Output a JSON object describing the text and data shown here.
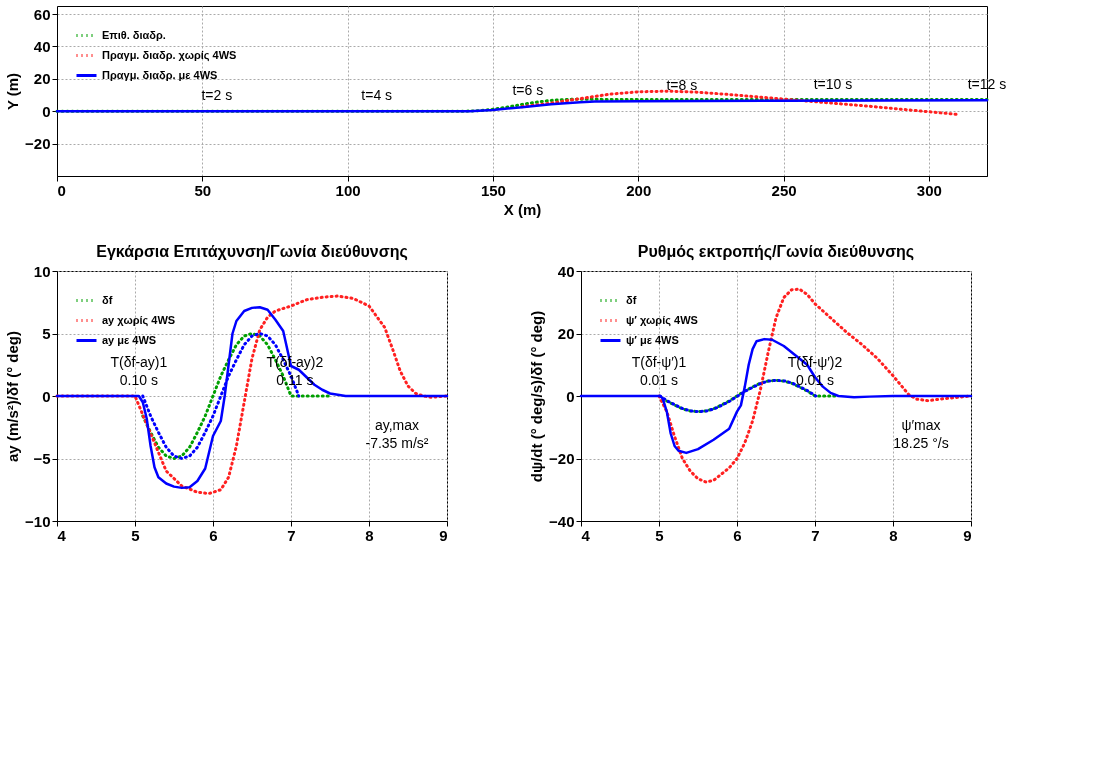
{
  "chart_data": [
    {
      "type": "line",
      "xlabel": "X (m)",
      "ylabel": "Y (m)",
      "xlim": [
        0,
        320
      ],
      "ylim": [
        -40,
        65
      ],
      "xticks": [
        0,
        50,
        100,
        150,
        200,
        250,
        300
      ],
      "yticks": [
        -20,
        0,
        20,
        40,
        60
      ],
      "grid": true,
      "legend": "top left",
      "marker": "none",
      "series": [
        {
          "name": "Επιθ. διαδρ.",
          "color": "#00a000",
          "line_style": "dotted",
          "x": [
            0,
            140,
            145,
            150,
            155,
            160,
            165,
            170,
            175,
            180,
            190,
            200,
            250,
            320
          ],
          "values": [
            0,
            0,
            0.3,
            1.2,
            2.6,
            4.2,
            5.6,
            6.7,
            7.3,
            7.4,
            7.3,
            7.2,
            7.2,
            7.2
          ]
        },
        {
          "name": "Πραγμ. διαδρ. χωρίς 4WS",
          "color": "#ff2020",
          "line_style": "dotted",
          "x": [
            160,
            170,
            180,
            190,
            200,
            210,
            220,
            230,
            240,
            250,
            260,
            270,
            280,
            290,
            300,
            310
          ],
          "values": [
            2.8,
            5.0,
            7.8,
            10.5,
            12.0,
            12.4,
            11.8,
            10.5,
            9.0,
            7.5,
            6.0,
            4.5,
            3.0,
            1.3,
            -0.3,
            -2.0
          ]
        },
        {
          "name": "Πραγμ. διαδρ. με 4WS",
          "color": "#0000ff",
          "line_style": "solid",
          "x": [
            0,
            142,
            150,
            160,
            170,
            180,
            185,
            200,
            250,
            320
          ],
          "values": [
            0,
            0,
            0.8,
            2.5,
            4.3,
            5.6,
            6.0,
            6.2,
            6.5,
            6.8
          ]
        }
      ],
      "annotations": [
        {
          "text": "t=2 s",
          "x": 55,
          "y": 0
        },
        {
          "text": "t=4 s",
          "x": 110,
          "y": 0
        },
        {
          "text": "t=6 s",
          "x": 162,
          "y": 3
        },
        {
          "text": "t=8 s",
          "x": 215,
          "y": 6.5
        },
        {
          "text": "t=10 s",
          "x": 267,
          "y": 6.8
        },
        {
          "text": "t=12 s",
          "x": 320,
          "y": 7
        }
      ]
    },
    {
      "type": "line",
      "title": "Εγκάρσια Επιτάχυνση/Γωνία διεύθυνσης",
      "ylabel": "ay (m/s²)/δf (° deg)",
      "xlim": [
        4,
        9
      ],
      "ylim": [
        -10,
        10
      ],
      "xticks": [
        4,
        5,
        6,
        7,
        8,
        9
      ],
      "yticks": [
        -10,
        -5,
        0,
        5,
        10
      ],
      "grid": true,
      "legend": "top left",
      "marker": "none",
      "series": [
        {
          "name": "δf",
          "color": "#00a000",
          "line_style": "dotted",
          "x": [
            5.1,
            5.2,
            5.3,
            5.4,
            5.5,
            5.6,
            5.7,
            5.8,
            5.9,
            6,
            6.1,
            6.2,
            6.3,
            6.4,
            6.5,
            6.6,
            6.7,
            6.8,
            6.9,
            7,
            7.5
          ],
          "values": [
            -1.6,
            -2.9,
            -4.1,
            -4.8,
            -5,
            -4.8,
            -4.1,
            -2.9,
            -1.6,
            0,
            1.6,
            2.9,
            4.1,
            4.8,
            5,
            4.8,
            4.1,
            2.9,
            1.6,
            0,
            0
          ]
        },
        {
          "name": "ay χωρίς 4WS",
          "color": "#ff2020",
          "line_style": "dotted",
          "x": [
            4,
            5,
            5.2,
            5.4,
            5.6,
            5.8,
            5.95,
            6.1,
            6.2,
            6.3,
            6.4,
            6.5,
            6.6,
            6.7,
            6.8,
            7,
            7.2,
            7.4,
            7.6,
            7.8,
            8,
            8.2,
            8.3,
            8.4,
            8.5,
            8.6,
            8.7,
            8.8,
            9
          ],
          "values": [
            0,
            0,
            -3,
            -6,
            -7.2,
            -7.7,
            -7.8,
            -7.5,
            -6.5,
            -4,
            -0.5,
            3,
            5.3,
            6.3,
            6.8,
            7.2,
            7.7,
            7.9,
            8,
            7.8,
            7.2,
            5.5,
            3.8,
            2,
            0.8,
            0.2,
            0,
            -0.1,
            0
          ]
        },
        {
          "name": "ay με 4WS",
          "color": "#0000ff",
          "line_style": "solid",
          "x": [
            4,
            5.05,
            5.1,
            5.15,
            5.2,
            5.25,
            5.3,
            5.4,
            5.5,
            5.6,
            5.7,
            5.8,
            5.9,
            6,
            6.1,
            6.15,
            6.2,
            6.25,
            6.3,
            6.4,
            6.5,
            6.6,
            6.7,
            6.8,
            6.9,
            7,
            7.1,
            7.2,
            7.3,
            7.4,
            7.5,
            7.7,
            9
          ],
          "values": [
            0,
            0,
            -0.5,
            -1.8,
            -4,
            -5.7,
            -6.5,
            -7,
            -7.25,
            -7.35,
            -7.3,
            -6.8,
            -5.8,
            -3.2,
            -2,
            0,
            2.5,
            5,
            6,
            6.8,
            7.05,
            7.1,
            6.9,
            6.1,
            5.2,
            2.4,
            2.1,
            1.5,
            0.9,
            0.5,
            0.2,
            0,
            0
          ]
        },
        {
          "color": "#0000ff",
          "line_style": "dotted",
          "x": [
            5.1,
            5.2,
            5.3,
            5.4,
            5.5,
            5.6,
            5.7,
            5.8,
            5.9,
            6,
            6.1,
            6.2,
            6.3,
            6.4,
            6.5,
            6.6,
            6.7,
            6.8,
            6.9,
            7,
            7.1
          ],
          "values": [
            0,
            -1.6,
            -2.9,
            -4.1,
            -4.8,
            -5,
            -4.8,
            -4.1,
            -2.9,
            -1.6,
            0,
            1.6,
            2.9,
            4.1,
            4.8,
            5,
            4.8,
            4.1,
            2.9,
            1.6,
            0
          ]
        }
      ],
      "annotations": [
        {
          "text": "T(δf-ay)1",
          "x": 5.05,
          "y": 0
        },
        {
          "text": "0.10 s",
          "x": 5.05,
          "y": 0
        },
        {
          "text": "T(δf-ay)2",
          "x": 7.05,
          "y": 0
        },
        {
          "text": "0.11 s",
          "x": 7.05,
          "y": 0
        },
        "ay,max",
        "-7.35 m/s²"
      ]
    },
    {
      "type": "line",
      "title": "Ρυθμός εκτροπής/Γωνία διεύθυνσης",
      "ylabel": "dψ/dt (° deg/s)/δf (° deg)",
      "xlim": [
        4,
        9
      ],
      "ylim": [
        -40,
        40
      ],
      "xticks": [
        4,
        5,
        6,
        7,
        8,
        9
      ],
      "yticks": [
        -40,
        -20,
        0,
        20,
        40
      ],
      "grid": true,
      "legend": "top left",
      "marker": "none",
      "series": [
        {
          "name": "δf",
          "color": "#00a000",
          "line_style": "dotted",
          "x": [
            5.1,
            5.2,
            5.3,
            5.4,
            5.5,
            5.6,
            5.7,
            5.8,
            5.9,
            6,
            6.1,
            6.2,
            6.3,
            6.4,
            6.5,
            6.6,
            6.7,
            6.8,
            6.9,
            7,
            7.3
          ],
          "values": [
            -1.6,
            -2.9,
            -4.1,
            -4.8,
            -5,
            -4.8,
            -4.1,
            -2.9,
            -1.6,
            0,
            1.6,
            2.9,
            4.1,
            4.8,
            5,
            4.8,
            4.1,
            2.9,
            1.6,
            0,
            0
          ]
        },
        {
          "name": "ψ′ χωρίς 4WS",
          "color": "#ff2020",
          "line_style": "dotted",
          "x": [
            5,
            5.1,
            5.2,
            5.3,
            5.4,
            5.5,
            5.6,
            5.7,
            5.8,
            5.9,
            6,
            6.1,
            6.2,
            6.3,
            6.4,
            6.5,
            6.6,
            6.7,
            6.8,
            6.9,
            7,
            7.2,
            7.4,
            7.6,
            7.8,
            8,
            8.1,
            8.2,
            8.3,
            8.45,
            8.6,
            8.8,
            9
          ],
          "values": [
            0,
            -5,
            -13,
            -20,
            -24,
            -26.5,
            -27.5,
            -27,
            -25,
            -23,
            -20,
            -15,
            -8,
            2,
            14,
            25,
            31.5,
            34,
            34.2,
            32.5,
            29.5,
            25,
            20.5,
            16.5,
            12,
            6.5,
            3.5,
            0.5,
            -1,
            -1.5,
            -1,
            -0.5,
            0
          ]
        },
        {
          "name": "ψ′ με 4WS",
          "color": "#0000ff",
          "line_style": "solid",
          "x": [
            4,
            5.02,
            5.05,
            5.1,
            5.15,
            5.2,
            5.25,
            5.35,
            5.5,
            5.7,
            5.9,
            6,
            6.05,
            6.1,
            6.15,
            6.2,
            6.25,
            6.35,
            6.45,
            6.6,
            6.8,
            6.9,
            7,
            7.1,
            7.2,
            7.3,
            7.5,
            7.7,
            8,
            9
          ],
          "values": [
            0,
            0,
            -1,
            -5,
            -12,
            -16,
            -17.5,
            -18.2,
            -17,
            -14,
            -10.5,
            -5,
            -3,
            3,
            10,
            15,
            17.5,
            18.2,
            18,
            16,
            12,
            10,
            6,
            3,
            1,
            0,
            -0.4,
            -0.2,
            0,
            0
          ]
        },
        {
          "color": "#0000ff",
          "line_style": "dotted",
          "x": [
            5.01,
            5.11,
            5.21,
            5.31,
            5.41,
            5.51,
            5.61,
            5.71,
            5.81,
            5.91,
            6.01,
            6.11,
            6.21,
            6.31,
            6.41,
            6.51,
            6.61,
            6.71,
            6.81,
            6.91,
            7.01
          ],
          "values": [
            0,
            -1.6,
            -2.9,
            -4.1,
            -4.8,
            -5,
            -4.8,
            -4.1,
            -2.9,
            -1.6,
            0,
            1.6,
            2.9,
            4.1,
            4.8,
            5,
            4.8,
            4.1,
            2.9,
            1.6,
            0
          ]
        }
      ],
      "annotations": [
        {
          "text": "T(δf-ψ′)1",
          "x": 5,
          "y": 0
        },
        {
          "text": "0.01 s",
          "x": 5,
          "y": 0
        },
        {
          "text": "T(δf-ψ′)2",
          "x": 7,
          "y": 0
        },
        {
          "text": "0.01 s",
          "x": 7,
          "y": 0
        },
        "ψ′max",
        "18.25 °/s"
      ]
    }
  ]
}
